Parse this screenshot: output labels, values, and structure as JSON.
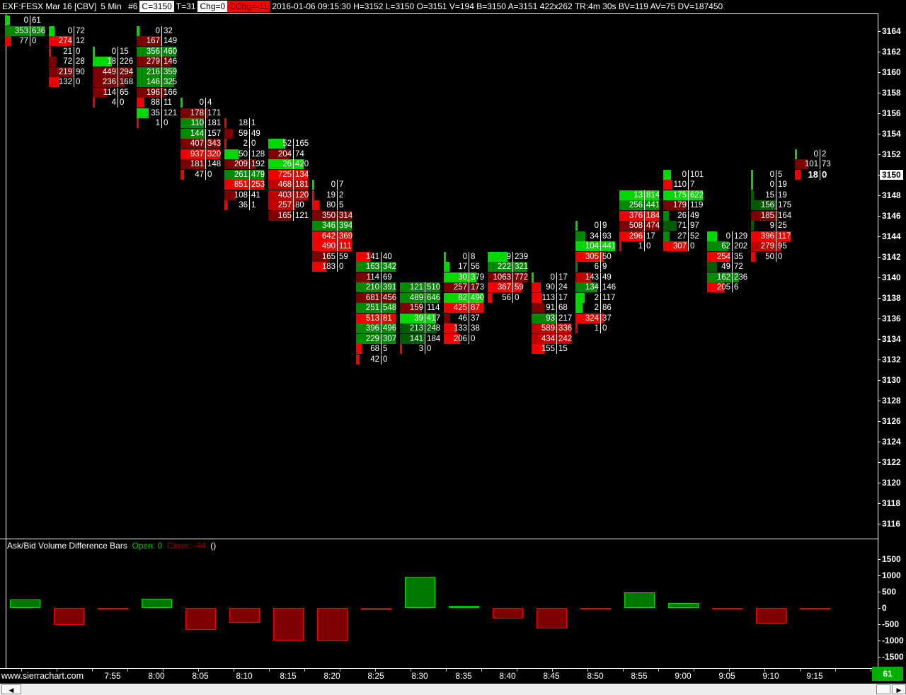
{
  "palette": {
    "lg": "#00d800",
    "g": "#008a00",
    "dg": "#005c00",
    "br": "#f20000",
    "r": "#c20000",
    "dr": "#7c0000",
    "bar_pos_fill": "#007800",
    "bar_pos_border": "#00d400",
    "bar_neg_fill": "#7c0000",
    "bar_neg_border": "#ee0000",
    "badge_bg": "#00b000",
    "open_color": "#00c800",
    "close_color": "#9c0000"
  },
  "title_bar": {
    "symbol": "EXF:FESX Mar 16 [CBV]",
    "period": "5 Min",
    "chart_number": "#6",
    "close_badge": "C=3150",
    "trades_badge": "T=31",
    "chg_badge": "Chg=0",
    "dchg_badge": "DChg=-11",
    "info": "2016-01-06 09:15:30 H=3152 L=3150 O=3151 V=194 B=3150 A=3151 422x262 TR:4m 30s BV=119 AV=75 DV=187450"
  },
  "price_axis": {
    "labels": [
      3164,
      3162,
      3160,
      3158,
      3156,
      3154,
      3152,
      3150,
      3148,
      3146,
      3144,
      3142,
      3140,
      3138,
      3136,
      3134,
      3132,
      3130,
      3128,
      3126,
      3124,
      3122,
      3120,
      3118,
      3116
    ],
    "highlight": 3150
  },
  "subgraph": {
    "title": "Ask/Bid Volume Difference Bars",
    "open_label": "Open: 0",
    "close_label": "Close: -44",
    "paren_label": "()",
    "axis_labels": [
      1500,
      1000,
      500,
      0,
      -500,
      -1000,
      -1500
    ]
  },
  "footer": {
    "watermark": "www.sierrachart.com",
    "count_badge": "61",
    "scroll_left_icon": "◀",
    "scroll_right_icon": "▶"
  },
  "chart_data": {
    "type": "footprint-bid-ask-volume",
    "price_range": [
      3116,
      3165
    ],
    "diff_axis_range": [
      -1500,
      1500
    ],
    "diff_series": [
      267,
      -516,
      -53,
      285,
      -680,
      -450,
      -1005,
      -1014,
      -73,
      954,
      72,
      -326,
      -629,
      -18,
      480,
      152,
      -52,
      -471,
      -44
    ],
    "columns": [
      {
        "time": "",
        "cells": [
          {
            "p": 3165,
            "b": 0,
            "a": 61,
            "c": "lg"
          },
          {
            "p": 3164,
            "b": 353,
            "a": 636,
            "c": "g"
          },
          {
            "p": 3163,
            "b": 77,
            "a": 0,
            "c": "br"
          }
        ]
      },
      {
        "time": "",
        "cells": [
          {
            "p": 3164,
            "b": 0,
            "a": 72,
            "c": "lg"
          },
          {
            "p": 3163,
            "b": 274,
            "a": 12,
            "c": "br"
          },
          {
            "p": 3162,
            "b": 21,
            "a": 0,
            "c": "br"
          },
          {
            "p": 3161,
            "b": 72,
            "a": 28,
            "c": "dr"
          },
          {
            "p": 3160,
            "b": 219,
            "a": 90,
            "c": "dr"
          },
          {
            "p": 3159,
            "b": 132,
            "a": 0,
            "c": "br"
          }
        ]
      },
      {
        "time": "7:55",
        "cells": [
          {
            "p": 3162,
            "b": 0,
            "a": 15,
            "c": "lg"
          },
          {
            "p": 3161,
            "b": 18,
            "a": 226,
            "c": "lg"
          },
          {
            "p": 3160,
            "b": 449,
            "a": 294,
            "c": "dr"
          },
          {
            "p": 3159,
            "b": 236,
            "a": 168,
            "c": "dr"
          },
          {
            "p": 3158,
            "b": 114,
            "a": 65,
            "c": "dr"
          },
          {
            "p": 3157,
            "b": 4,
            "a": 0,
            "c": "br"
          }
        ]
      },
      {
        "time": "8:00",
        "cells": [
          {
            "p": 3164,
            "b": 0,
            "a": 32,
            "c": "lg"
          },
          {
            "p": 3163,
            "b": 167,
            "a": 149,
            "c": "dr"
          },
          {
            "p": 3162,
            "b": 356,
            "a": 460,
            "c": "g"
          },
          {
            "p": 3161,
            "b": 279,
            "a": 146,
            "c": "dr"
          },
          {
            "p": 3160,
            "b": 216,
            "a": 359,
            "c": "g"
          },
          {
            "p": 3159,
            "b": 146,
            "a": 325,
            "c": "g"
          },
          {
            "p": 3158,
            "b": 196,
            "a": 166,
            "c": "dr"
          },
          {
            "p": 3157,
            "b": 88,
            "a": 11,
            "c": "br"
          },
          {
            "p": 3156,
            "b": 35,
            "a": 121,
            "c": "lg"
          },
          {
            "p": 3155,
            "b": 1,
            "a": 0,
            "c": "br"
          }
        ]
      },
      {
        "time": "8:05",
        "cells": [
          {
            "p": 3157,
            "b": 0,
            "a": 4,
            "c": "lg"
          },
          {
            "p": 3156,
            "b": 178,
            "a": 171,
            "c": "dr"
          },
          {
            "p": 3155,
            "b": 110,
            "a": 181,
            "c": "g"
          },
          {
            "p": 3154,
            "b": 144,
            "a": 157,
            "c": "g"
          },
          {
            "p": 3153,
            "b": 407,
            "a": 343,
            "c": "dr"
          },
          {
            "p": 3152,
            "b": 937,
            "a": 320,
            "c": "br"
          },
          {
            "p": 3151,
            "b": 181,
            "a": 148,
            "c": "dr"
          },
          {
            "p": 3150,
            "b": 47,
            "a": 0,
            "c": "br"
          }
        ]
      },
      {
        "time": "8:10",
        "cells": [
          {
            "p": 3155,
            "b": 18,
            "a": 1,
            "c": "br"
          },
          {
            "p": 3154,
            "b": 59,
            "a": 49,
            "c": "dr"
          },
          {
            "p": 3153,
            "b": 2,
            "a": 0,
            "c": "br"
          },
          {
            "p": 3152,
            "b": 50,
            "a": 128,
            "c": "lg"
          },
          {
            "p": 3151,
            "b": 209,
            "a": 192,
            "c": "dr"
          },
          {
            "p": 3150,
            "b": 261,
            "a": 479,
            "c": "g"
          },
          {
            "p": 3149,
            "b": 851,
            "a": 253,
            "c": "br"
          },
          {
            "p": 3148,
            "b": 108,
            "a": 41,
            "c": "dr"
          },
          {
            "p": 3147,
            "b": 36,
            "a": 1,
            "c": "br"
          }
        ]
      },
      {
        "time": "8:15",
        "cells": [
          {
            "p": 3153,
            "b": 52,
            "a": 165,
            "c": "lg"
          },
          {
            "p": 3152,
            "b": 204,
            "a": 74,
            "c": "dr"
          },
          {
            "p": 3151,
            "b": 26,
            "a": 420,
            "c": "lg"
          },
          {
            "p": 3150,
            "b": 725,
            "a": 134,
            "c": "br"
          },
          {
            "p": 3149,
            "b": 468,
            "a": 181,
            "c": "r"
          },
          {
            "p": 3148,
            "b": 403,
            "a": 120,
            "c": "r"
          },
          {
            "p": 3147,
            "b": 257,
            "a": 80,
            "c": "r"
          },
          {
            "p": 3146,
            "b": 165,
            "a": 121,
            "c": "dr"
          }
        ]
      },
      {
        "time": "8:20",
        "cells": [
          {
            "p": 3149,
            "b": 0,
            "a": 7,
            "c": "lg"
          },
          {
            "p": 3148,
            "b": 19,
            "a": 2,
            "c": "br"
          },
          {
            "p": 3147,
            "b": 80,
            "a": 5,
            "c": "br"
          },
          {
            "p": 3146,
            "b": 350,
            "a": 314,
            "c": "dr"
          },
          {
            "p": 3145,
            "b": 346,
            "a": 394,
            "c": "g"
          },
          {
            "p": 3144,
            "b": 642,
            "a": 369,
            "c": "br"
          },
          {
            "p": 3143,
            "b": 490,
            "a": 111,
            "c": "br"
          },
          {
            "p": 3142,
            "b": 165,
            "a": 59,
            "c": "dr"
          },
          {
            "p": 3141,
            "b": 183,
            "a": 0,
            "c": "br"
          }
        ]
      },
      {
        "time": "8:25",
        "cells": [
          {
            "p": 3142,
            "b": 141,
            "a": 40,
            "c": "br"
          },
          {
            "p": 3141,
            "b": 163,
            "a": 342,
            "c": "g"
          },
          {
            "p": 3140,
            "b": 114,
            "a": 69,
            "c": "dr"
          },
          {
            "p": 3139,
            "b": 210,
            "a": 391,
            "c": "g"
          },
          {
            "p": 3138,
            "b": 681,
            "a": 456,
            "c": "dr"
          },
          {
            "p": 3137,
            "b": 251,
            "a": 548,
            "c": "g"
          },
          {
            "p": 3136,
            "b": 513,
            "a": 81,
            "c": "br"
          },
          {
            "p": 3135,
            "b": 396,
            "a": 496,
            "c": "g"
          },
          {
            "p": 3134,
            "b": 229,
            "a": 307,
            "c": "g"
          },
          {
            "p": 3133,
            "b": 68,
            "a": 5,
            "c": "br"
          },
          {
            "p": 3132,
            "b": 42,
            "a": 0,
            "c": "br"
          }
        ]
      },
      {
        "time": "8:30",
        "cells": [
          {
            "p": 3139,
            "b": 121,
            "a": 510,
            "c": "g"
          },
          {
            "p": 3138,
            "b": 489,
            "a": 646,
            "c": "g"
          },
          {
            "p": 3137,
            "b": 159,
            "a": 114,
            "c": "dr"
          },
          {
            "p": 3136,
            "b": 39,
            "a": 417,
            "c": "lg"
          },
          {
            "p": 3135,
            "b": 213,
            "a": 248,
            "c": "dg"
          },
          {
            "p": 3134,
            "b": 141,
            "a": 184,
            "c": "dg"
          },
          {
            "p": 3133,
            "b": 3,
            "a": 0,
            "c": "br"
          }
        ]
      },
      {
        "time": "8:35",
        "cells": [
          {
            "p": 3142,
            "b": 0,
            "a": 8,
            "c": "lg"
          },
          {
            "p": 3141,
            "b": 17,
            "a": 56,
            "c": "lg"
          },
          {
            "p": 3140,
            "b": 30,
            "a": 379,
            "c": "lg"
          },
          {
            "p": 3139,
            "b": 257,
            "a": 173,
            "c": "dr"
          },
          {
            "p": 3138,
            "b": 82,
            "a": 490,
            "c": "lg"
          },
          {
            "p": 3137,
            "b": 425,
            "a": 87,
            "c": "br"
          },
          {
            "p": 3136,
            "b": 46,
            "a": 37,
            "c": "dr"
          },
          {
            "p": 3135,
            "b": 133,
            "a": 38,
            "c": "br"
          },
          {
            "p": 3134,
            "b": 206,
            "a": 0,
            "c": "br"
          }
        ]
      },
      {
        "time": "8:40",
        "cells": [
          {
            "p": 3142,
            "b": 9,
            "a": 239,
            "c": "lg"
          },
          {
            "p": 3141,
            "b": 222,
            "a": 321,
            "c": "g"
          },
          {
            "p": 3140,
            "b": 1063,
            "a": 772,
            "c": "dr"
          },
          {
            "p": 3139,
            "b": 367,
            "a": 59,
            "c": "br"
          },
          {
            "p": 3138,
            "b": 56,
            "a": 0,
            "c": "br"
          }
        ]
      },
      {
        "time": "8:45",
        "cells": [
          {
            "p": 3140,
            "b": 0,
            "a": 17,
            "c": "lg"
          },
          {
            "p": 3139,
            "b": 90,
            "a": 24,
            "c": "br"
          },
          {
            "p": 3138,
            "b": 113,
            "a": 17,
            "c": "br"
          },
          {
            "p": 3137,
            "b": 91,
            "a": 68,
            "c": "dr"
          },
          {
            "p": 3136,
            "b": 93,
            "a": 217,
            "c": "g"
          },
          {
            "p": 3135,
            "b": 589,
            "a": 336,
            "c": "r"
          },
          {
            "p": 3134,
            "b": 434,
            "a": 242,
            "c": "r"
          },
          {
            "p": 3133,
            "b": 155,
            "a": 15,
            "c": "br"
          }
        ]
      },
      {
        "time": "8:50",
        "cells": [
          {
            "p": 3145,
            "b": 0,
            "a": 9,
            "c": "lg"
          },
          {
            "p": 3144,
            "b": 34,
            "a": 93,
            "c": "g"
          },
          {
            "p": 3143,
            "b": 104,
            "a": 441,
            "c": "lg"
          },
          {
            "p": 3142,
            "b": 305,
            "a": 50,
            "c": "br"
          },
          {
            "p": 3141,
            "b": 6,
            "a": 9,
            "c": "g"
          },
          {
            "p": 3140,
            "b": 143,
            "a": 49,
            "c": "r"
          },
          {
            "p": 3139,
            "b": 134,
            "a": 146,
            "c": "g"
          },
          {
            "p": 3138,
            "b": 2,
            "a": 117,
            "c": "lg"
          },
          {
            "p": 3137,
            "b": 2,
            "a": 86,
            "c": "lg"
          },
          {
            "p": 3136,
            "b": 324,
            "a": 37,
            "c": "br"
          },
          {
            "p": 3135,
            "b": 1,
            "a": 0,
            "c": "br"
          }
        ]
      },
      {
        "time": "8:55",
        "cells": [
          {
            "p": 3148,
            "b": 13,
            "a": 814,
            "c": "lg"
          },
          {
            "p": 3147,
            "b": 256,
            "a": 441,
            "c": "g"
          },
          {
            "p": 3146,
            "b": 376,
            "a": 184,
            "c": "br"
          },
          {
            "p": 3145,
            "b": 508,
            "a": 474,
            "c": "dr"
          },
          {
            "p": 3144,
            "b": 296,
            "a": 17,
            "c": "br"
          },
          {
            "p": 3143,
            "b": 1,
            "a": 0,
            "c": "br"
          }
        ]
      },
      {
        "time": "9:00",
        "cells": [
          {
            "p": 3150,
            "b": 0,
            "a": 101,
            "c": "lg"
          },
          {
            "p": 3149,
            "b": 110,
            "a": 7,
            "c": "br"
          },
          {
            "p": 3148,
            "b": 175,
            "a": 622,
            "c": "lg"
          },
          {
            "p": 3147,
            "b": 179,
            "a": 119,
            "c": "dr"
          },
          {
            "p": 3146,
            "b": 26,
            "a": 49,
            "c": "g"
          },
          {
            "p": 3145,
            "b": 71,
            "a": 97,
            "c": "dg"
          },
          {
            "p": 3144,
            "b": 27,
            "a": 52,
            "c": "g"
          },
          {
            "p": 3143,
            "b": 307,
            "a": 0,
            "c": "br"
          }
        ]
      },
      {
        "time": "9:05",
        "cells": [
          {
            "p": 3144,
            "b": 0,
            "a": 129,
            "c": "lg"
          },
          {
            "p": 3143,
            "b": 62,
            "a": 202,
            "c": "g"
          },
          {
            "p": 3142,
            "b": 254,
            "a": 35,
            "c": "br"
          },
          {
            "p": 3141,
            "b": 49,
            "a": 72,
            "c": "dg"
          },
          {
            "p": 3140,
            "b": 162,
            "a": 236,
            "c": "g"
          },
          {
            "p": 3139,
            "b": 205,
            "a": 6,
            "c": "br"
          }
        ]
      },
      {
        "time": "9:10",
        "cells": [
          {
            "p": 3150,
            "b": 0,
            "a": 5,
            "c": "lg"
          },
          {
            "p": 3149,
            "b": 0,
            "a": 19,
            "c": "lg"
          },
          {
            "p": 3148,
            "b": 15,
            "a": 19,
            "c": "dg"
          },
          {
            "p": 3147,
            "b": 156,
            "a": 175,
            "c": "dg"
          },
          {
            "p": 3146,
            "b": 185,
            "a": 164,
            "c": "dr"
          },
          {
            "p": 3145,
            "b": 9,
            "a": 25,
            "c": "dg"
          },
          {
            "p": 3144,
            "b": 396,
            "a": 117,
            "c": "br"
          },
          {
            "p": 3143,
            "b": 279,
            "a": 95,
            "c": "r"
          },
          {
            "p": 3142,
            "b": 50,
            "a": 0,
            "c": "br"
          }
        ]
      },
      {
        "time": "9:15",
        "cells": [
          {
            "p": 3152,
            "b": 0,
            "a": 2,
            "c": "lg"
          },
          {
            "p": 3151,
            "b": 101,
            "a": 73,
            "c": "dr"
          },
          {
            "p": 3150,
            "b": 18,
            "a": 0,
            "c": "br",
            "cur": true
          }
        ]
      }
    ]
  }
}
